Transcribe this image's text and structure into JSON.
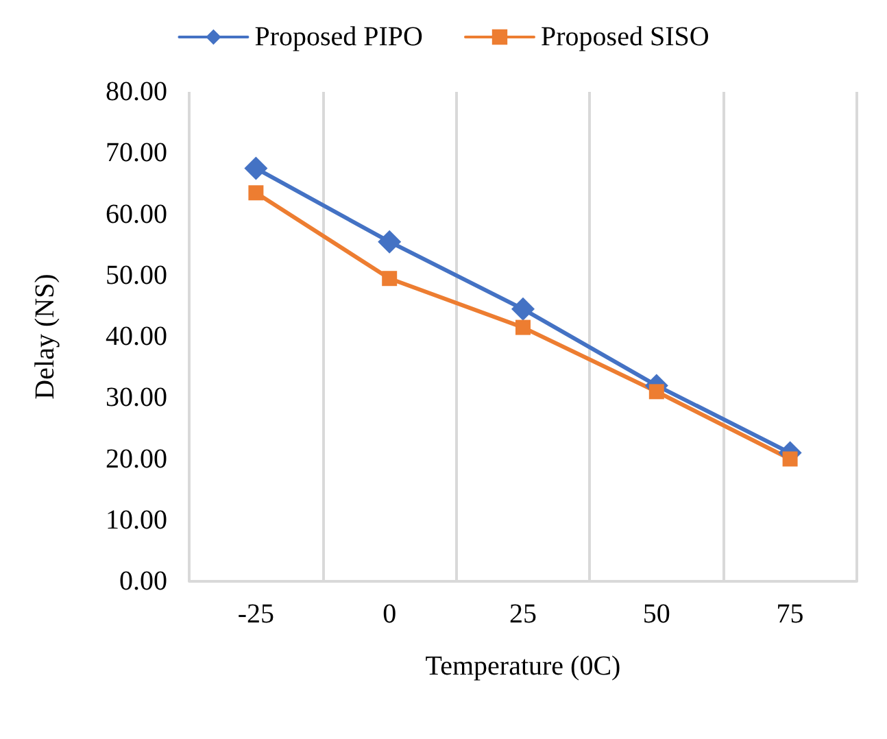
{
  "chart_data": {
    "type": "line",
    "xlabel": "Temperature (0C)",
    "ylabel": "Delay (NS)",
    "categories": [
      "-25",
      "0",
      "25",
      "50",
      "75"
    ],
    "series": [
      {
        "name": "Proposed PIPO",
        "color": "#4472c4",
        "marker": "diamond",
        "values": [
          67.5,
          55.5,
          44.5,
          32,
          21
        ]
      },
      {
        "name": "Proposed SISO",
        "color": "#ed7d31",
        "marker": "square",
        "values": [
          63.5,
          49.5,
          41.5,
          31,
          20
        ]
      }
    ],
    "ylim": [
      0,
      80
    ],
    "yticks": [
      {
        "value": 0,
        "label": "0.00"
      },
      {
        "value": 10,
        "label": "10.00"
      },
      {
        "value": 20,
        "label": "20.00"
      },
      {
        "value": 30,
        "label": "30.00"
      },
      {
        "value": 40,
        "label": "40.00"
      },
      {
        "value": 50,
        "label": "50.00"
      },
      {
        "value": 60,
        "label": "60.00"
      },
      {
        "value": 70,
        "label": "70.00"
      },
      {
        "value": 80,
        "label": "80.00"
      }
    ],
    "grid": "x",
    "legend": "top",
    "line_style": "solid"
  }
}
